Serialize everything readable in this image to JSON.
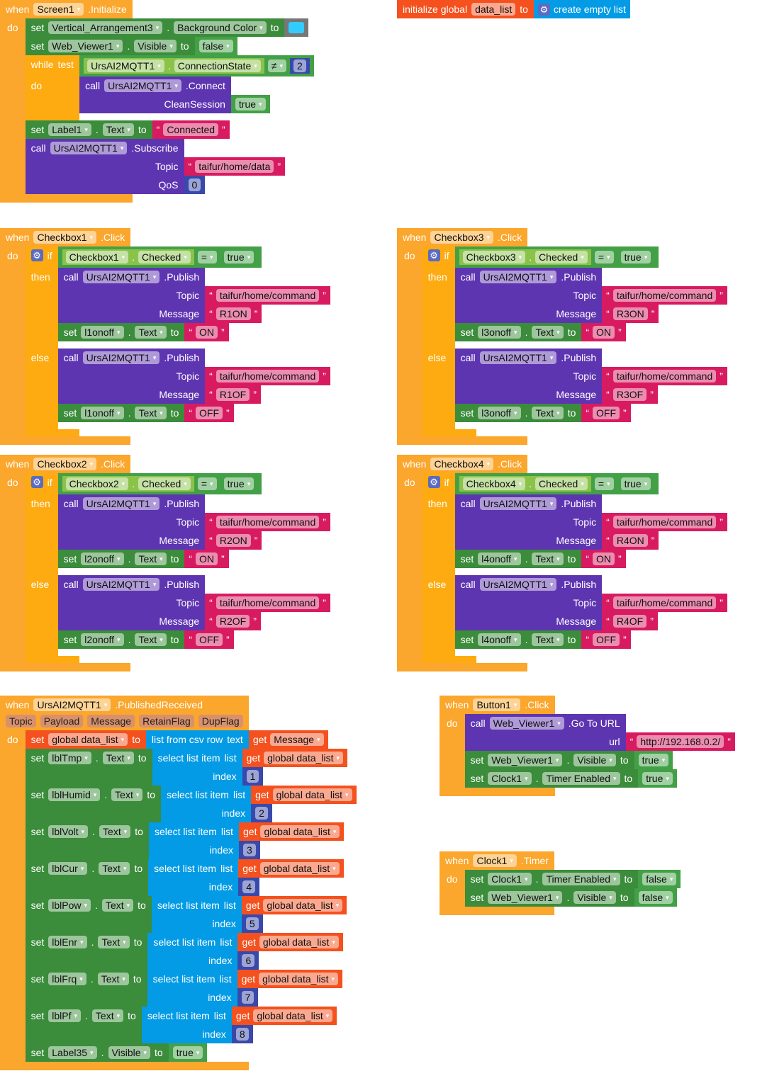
{
  "colors": {
    "event": "#fba62c",
    "control": "#fdab10",
    "setter": "#3b8c3b",
    "logic": "#43a047",
    "getter": "#8bc34a",
    "method": "#5e35b1",
    "text": "#d81b60",
    "number": "#3949ab",
    "variable": "#f4511e",
    "list": "#039be5",
    "color_block": "#777777"
  },
  "keywords": {
    "when": "when",
    "do": "do",
    "set": "set",
    "to": "to",
    "call": "call",
    "if": "if",
    "then": "then",
    "else": "else",
    "while": "while",
    "test": "test",
    "get": "get",
    "list": "list",
    "index": "index",
    "text": "text",
    "dot": ".",
    "open_quote": "“",
    "close_quote": "”",
    "initialize_global": "initialize global",
    "create_empty_list": "create empty list",
    "list_from_csv_row": "list from csv row",
    "select_list_item": "select list item"
  },
  "scripts": [
    {
      "kind": "event",
      "component": "Screen1",
      "event": ".Initialize",
      "body": [
        {
          "kind": "set",
          "component": "Vertical_Arrangement3",
          "property": "Background Color",
          "value": {
            "kind": "color",
            "color": "#33ccff"
          }
        },
        {
          "kind": "set",
          "component": "Web_Viewer1",
          "property": "Visible",
          "value": {
            "kind": "bool",
            "val": "false"
          }
        },
        {
          "kind": "while",
          "cond": {
            "kind": "compare",
            "left": {
              "kind": "prop_get",
              "component": "UrsAI2MQTT1",
              "property": "ConnectionState"
            },
            "op": "≠",
            "right": {
              "kind": "number",
              "num": "2"
            }
          },
          "body": [
            {
              "kind": "call",
              "component": "UrsAI2MQTT1",
              "method": ".Connect",
              "args": [
                {
                  "name": "CleanSession",
                  "value": {
                    "kind": "bool",
                    "val": "true"
                  }
                }
              ]
            }
          ]
        },
        {
          "kind": "set",
          "component": "Label1",
          "property": "Text",
          "value": {
            "kind": "text",
            "text": "Connected"
          }
        },
        {
          "kind": "call",
          "component": "UrsAI2MQTT1",
          "method": ".Subscribe",
          "args": [
            {
              "name": "Topic",
              "value": {
                "kind": "text",
                "text": "taifur/home/data"
              }
            },
            {
              "name": "QoS",
              "value": {
                "kind": "number",
                "num": "0"
              }
            }
          ]
        }
      ]
    },
    {
      "kind": "global_init",
      "name": "data_list",
      "value": {
        "kind": "list_create"
      }
    },
    {
      "kind": "event",
      "component": "Checkbox1",
      "event": ".Click",
      "body": [
        {
          "kind": "if_else",
          "cond": {
            "kind": "compare",
            "left": {
              "kind": "prop_get",
              "component": "Checkbox1",
              "property": "Checked"
            },
            "op": "=",
            "right": {
              "kind": "bool",
              "val": "true"
            }
          },
          "then": [
            {
              "kind": "call",
              "component": "UrsAI2MQTT1",
              "method": ".Publish",
              "args": [
                {
                  "name": "Topic",
                  "value": {
                    "kind": "text",
                    "text": "taifur/home/command"
                  }
                },
                {
                  "name": "Message",
                  "value": {
                    "kind": "text",
                    "text": "R1ON"
                  }
                }
              ]
            },
            {
              "kind": "set",
              "component": "l1onoff",
              "property": "Text",
              "value": {
                "kind": "text",
                "text": "ON"
              }
            }
          ],
          "else": [
            {
              "kind": "call",
              "component": "UrsAI2MQTT1",
              "method": ".Publish",
              "args": [
                {
                  "name": "Topic",
                  "value": {
                    "kind": "text",
                    "text": "taifur/home/command"
                  }
                },
                {
                  "name": "Message",
                  "value": {
                    "kind": "text",
                    "text": "R1OF"
                  }
                }
              ]
            },
            {
              "kind": "set",
              "component": "l1onoff",
              "property": "Text",
              "value": {
                "kind": "text",
                "text": "OFF"
              }
            }
          ]
        }
      ]
    },
    {
      "kind": "event",
      "component": "Checkbox3",
      "event": ".Click",
      "body": [
        {
          "kind": "if_else",
          "cond": {
            "kind": "compare",
            "left": {
              "kind": "prop_get",
              "component": "Checkbox3",
              "property": "Checked"
            },
            "op": "=",
            "right": {
              "kind": "bool",
              "val": "true"
            }
          },
          "then": [
            {
              "kind": "call",
              "component": "UrsAI2MQTT1",
              "method": ".Publish",
              "args": [
                {
                  "name": "Topic",
                  "value": {
                    "kind": "text",
                    "text": "taifur/home/command"
                  }
                },
                {
                  "name": "Message",
                  "value": {
                    "kind": "text",
                    "text": "R3ON"
                  }
                }
              ]
            },
            {
              "kind": "set",
              "component": "l3onoff",
              "property": "Text",
              "value": {
                "kind": "text",
                "text": "ON"
              }
            }
          ],
          "else": [
            {
              "kind": "call",
              "component": "UrsAI2MQTT1",
              "method": ".Publish",
              "args": [
                {
                  "name": "Topic",
                  "value": {
                    "kind": "text",
                    "text": "taifur/home/command"
                  }
                },
                {
                  "name": "Message",
                  "value": {
                    "kind": "text",
                    "text": "R3OF"
                  }
                }
              ]
            },
            {
              "kind": "set",
              "component": "l3onoff",
              "property": "Text",
              "value": {
                "kind": "text",
                "text": "OFF"
              }
            }
          ]
        }
      ]
    },
    {
      "kind": "event",
      "component": "Checkbox2",
      "event": ".Click",
      "body": [
        {
          "kind": "if_else",
          "cond": {
            "kind": "compare",
            "left": {
              "kind": "prop_get",
              "component": "Checkbox2",
              "property": "Checked"
            },
            "op": "=",
            "right": {
              "kind": "bool",
              "val": "true"
            }
          },
          "then": [
            {
              "kind": "call",
              "component": "UrsAI2MQTT1",
              "method": ".Publish",
              "args": [
                {
                  "name": "Topic",
                  "value": {
                    "kind": "text",
                    "text": "taifur/home/command"
                  }
                },
                {
                  "name": "Message",
                  "value": {
                    "kind": "text",
                    "text": "R2ON"
                  }
                }
              ]
            },
            {
              "kind": "set",
              "component": "l2onoff",
              "property": "Text",
              "value": {
                "kind": "text",
                "text": "ON"
              }
            }
          ],
          "else": [
            {
              "kind": "call",
              "component": "UrsAI2MQTT1",
              "method": ".Publish",
              "args": [
                {
                  "name": "Topic",
                  "value": {
                    "kind": "text",
                    "text": "taifur/home/command"
                  }
                },
                {
                  "name": "Message",
                  "value": {
                    "kind": "text",
                    "text": "R2OF"
                  }
                }
              ]
            },
            {
              "kind": "set",
              "component": "l2onoff",
              "property": "Text",
              "value": {
                "kind": "text",
                "text": "OFF"
              }
            }
          ]
        }
      ]
    },
    {
      "kind": "event",
      "component": "Checkbox4",
      "event": ".Click",
      "body": [
        {
          "kind": "if_else",
          "cond": {
            "kind": "compare",
            "left": {
              "kind": "prop_get",
              "component": "Checkbox4",
              "property": "Checked"
            },
            "op": "=",
            "right": {
              "kind": "bool",
              "val": "true"
            }
          },
          "then": [
            {
              "kind": "call",
              "component": "UrsAI2MQTT1",
              "method": ".Publish",
              "args": [
                {
                  "name": "Topic",
                  "value": {
                    "kind": "text",
                    "text": "taifur/home/command"
                  }
                },
                {
                  "name": "Message",
                  "value": {
                    "kind": "text",
                    "text": "R4ON"
                  }
                }
              ]
            },
            {
              "kind": "set",
              "component": "l4onoff",
              "property": "Text",
              "value": {
                "kind": "text",
                "text": "ON"
              }
            }
          ],
          "else": [
            {
              "kind": "call",
              "component": "UrsAI2MQTT1",
              "method": ".Publish",
              "args": [
                {
                  "name": "Topic",
                  "value": {
                    "kind": "text",
                    "text": "taifur/home/command"
                  }
                },
                {
                  "name": "Message",
                  "value": {
                    "kind": "text",
                    "text": "R4OF"
                  }
                }
              ]
            },
            {
              "kind": "set",
              "component": "l4onoff",
              "property": "Text",
              "value": {
                "kind": "text",
                "text": "OFF"
              }
            }
          ]
        }
      ]
    },
    {
      "kind": "event",
      "component": "UrsAI2MQTT1",
      "event": ".PublishedReceived",
      "params": [
        "Topic",
        "Payload",
        "Message",
        "RetainFlag",
        "DupFlag"
      ],
      "body": [
        {
          "kind": "set_global",
          "name": "global data_list",
          "value": {
            "kind": "csv_row",
            "value": {
              "kind": "get",
              "name": "Message"
            }
          }
        },
        {
          "kind": "set",
          "component": "lblTmp",
          "property": "Text",
          "value": {
            "kind": "select_item",
            "list": {
              "kind": "get",
              "name": "global data_list"
            },
            "index": {
              "kind": "number",
              "num": "1"
            }
          }
        },
        {
          "kind": "set",
          "component": "lblHumid",
          "property": "Text",
          "value": {
            "kind": "select_item",
            "list": {
              "kind": "get",
              "name": "global data_list"
            },
            "index": {
              "kind": "number",
              "num": "2"
            }
          }
        },
        {
          "kind": "set",
          "component": "lblVolt",
          "property": "Text",
          "value": {
            "kind": "select_item",
            "list": {
              "kind": "get",
              "name": "global data_list"
            },
            "index": {
              "kind": "number",
              "num": "3"
            }
          }
        },
        {
          "kind": "set",
          "component": "lblCur",
          "property": "Text",
          "value": {
            "kind": "select_item",
            "list": {
              "kind": "get",
              "name": "global data_list"
            },
            "index": {
              "kind": "number",
              "num": "4"
            }
          }
        },
        {
          "kind": "set",
          "component": "lblPow",
          "property": "Text",
          "value": {
            "kind": "select_item",
            "list": {
              "kind": "get",
              "name": "global data_list"
            },
            "index": {
              "kind": "number",
              "num": "5"
            }
          }
        },
        {
          "kind": "set",
          "component": "lblEnr",
          "property": "Text",
          "value": {
            "kind": "select_item",
            "list": {
              "kind": "get",
              "name": "global data_list"
            },
            "index": {
              "kind": "number",
              "num": "6"
            }
          }
        },
        {
          "kind": "set",
          "component": "lblFrq",
          "property": "Text",
          "value": {
            "kind": "select_item",
            "list": {
              "kind": "get",
              "name": "global data_list"
            },
            "index": {
              "kind": "number",
              "num": "7"
            }
          }
        },
        {
          "kind": "set",
          "component": "lblPf",
          "property": "Text",
          "value": {
            "kind": "select_item",
            "list": {
              "kind": "get",
              "name": "global data_list"
            },
            "index": {
              "kind": "number",
              "num": "8"
            }
          }
        },
        {
          "kind": "set",
          "component": "Label35",
          "property": "Visible",
          "value": {
            "kind": "bool",
            "val": "true"
          }
        }
      ]
    },
    {
      "kind": "event",
      "component": "Button1",
      "event": ".Click",
      "body": [
        {
          "kind": "call",
          "component": "Web_Viewer1",
          "method": ".Go To URL",
          "args": [
            {
              "name": "url",
              "value": {
                "kind": "text",
                "text": "http://192.168.0.2/"
              }
            }
          ]
        },
        {
          "kind": "set",
          "component": "Web_Viewer1",
          "property": "Visible",
          "value": {
            "kind": "bool",
            "val": "true"
          }
        },
        {
          "kind": "set",
          "component": "Clock1",
          "property": "Timer Enabled",
          "value": {
            "kind": "bool",
            "val": "true"
          }
        }
      ]
    },
    {
      "kind": "event",
      "component": "Clock1",
      "event": ".Timer",
      "body": [
        {
          "kind": "set",
          "component": "Clock1",
          "property": "Timer Enabled",
          "value": {
            "kind": "bool",
            "val": "false"
          }
        },
        {
          "kind": "set",
          "component": "Web_Viewer1",
          "property": "Visible",
          "value": {
            "kind": "bool",
            "val": "false"
          }
        }
      ]
    }
  ]
}
